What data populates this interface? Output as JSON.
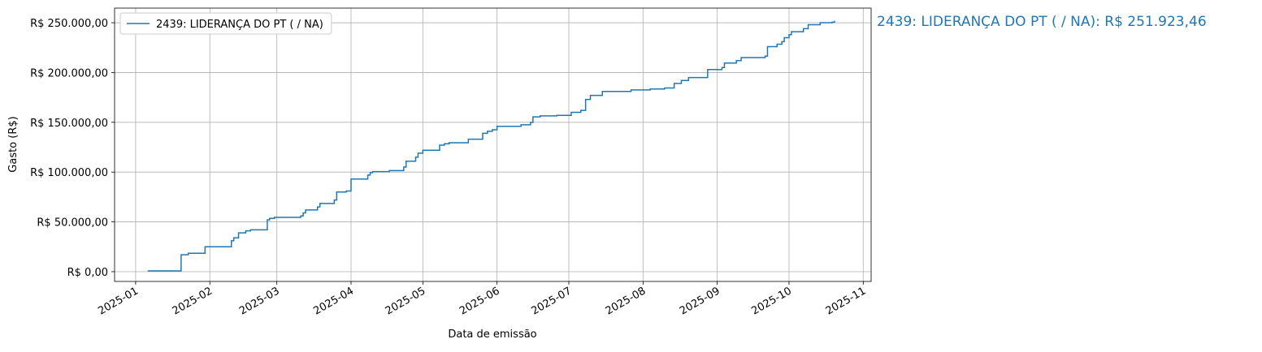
{
  "chart_data": {
    "type": "step",
    "x_label": "Data de emissão",
    "y_label": "Gasto (R$)",
    "annotation": "2439: LIDERANÇA DO PT ( / NA): R$ 251.923,46",
    "legend": "upper left",
    "grid": true,
    "xlim": [
      -7.8,
      308.3
    ],
    "ylim": [
      -9800,
      264700
    ],
    "xticks": [
      {
        "value": 1,
        "label": "2025-01"
      },
      {
        "value": 32,
        "label": "2025-02"
      },
      {
        "value": 60,
        "label": "2025-03"
      },
      {
        "value": 91,
        "label": "2025-04"
      },
      {
        "value": 121,
        "label": "2025-05"
      },
      {
        "value": 152,
        "label": "2025-06"
      },
      {
        "value": 182,
        "label": "2025-07"
      },
      {
        "value": 213,
        "label": "2025-08"
      },
      {
        "value": 244,
        "label": "2025-09"
      },
      {
        "value": 274,
        "label": "2025-10"
      },
      {
        "value": 305,
        "label": "2025-11"
      }
    ],
    "yticks": [
      {
        "value": 0,
        "label": "R$ 0,00"
      },
      {
        "value": 50000,
        "label": "R$ 50.000,00"
      },
      {
        "value": 100000,
        "label": "R$ 100.000,00"
      },
      {
        "value": 150000,
        "label": "R$ 150.000,00"
      },
      {
        "value": 200000,
        "label": "R$ 200.000,00"
      },
      {
        "value": 250000,
        "label": "R$ 250.000,00"
      }
    ],
    "x": [
      6,
      20,
      23,
      30,
      41,
      42,
      44,
      47,
      49,
      56,
      57,
      59,
      70,
      71,
      72,
      77,
      78,
      84,
      85,
      89,
      91,
      98,
      99,
      100,
      107,
      113,
      114,
      118,
      119,
      121,
      128,
      130,
      132,
      140,
      146,
      148,
      150,
      152,
      162,
      166,
      167,
      170,
      177,
      183,
      187,
      189,
      191,
      196,
      208,
      216,
      222,
      226,
      229,
      232,
      240,
      246,
      247,
      252,
      254,
      264,
      265,
      269,
      271,
      272,
      274,
      275,
      280,
      282,
      287,
      292,
      293
    ],
    "series": [
      {
        "name": "2439: LIDERANÇA DO PT ( / NA)",
        "color": "#1f77b4",
        "values": [
          800,
          17000,
          18500,
          25000,
          31000,
          34000,
          39000,
          41000,
          42000,
          52000,
          53500,
          54500,
          56000,
          59000,
          62000,
          65000,
          68500,
          72000,
          80000,
          81000,
          93000,
          97000,
          99500,
          100500,
          101500,
          105000,
          111000,
          115000,
          119000,
          122000,
          127000,
          128500,
          129500,
          133000,
          139000,
          141000,
          142500,
          146000,
          147500,
          150000,
          155500,
          156500,
          157000,
          160000,
          162000,
          173000,
          177000,
          181000,
          182500,
          183500,
          184500,
          189000,
          192000,
          195000,
          203000,
          205000,
          209500,
          212000,
          215000,
          216500,
          226000,
          228500,
          231000,
          235000,
          238000,
          241000,
          244000,
          248000,
          250000,
          250500,
          251923.46
        ]
      }
    ]
  }
}
